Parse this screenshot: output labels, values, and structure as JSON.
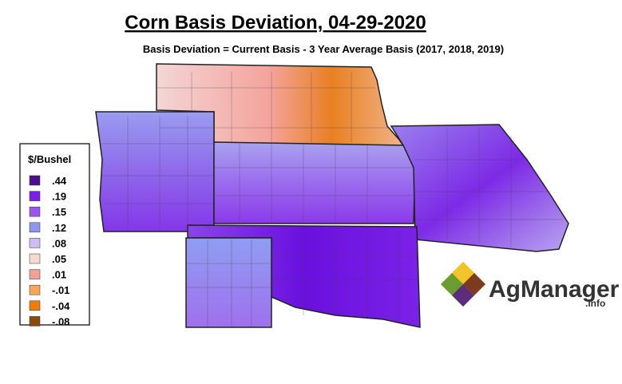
{
  "header": {
    "title": "Corn Basis Deviation, 04-29-2020",
    "subtitle": "Basis Deviation = Current Basis - 3 Year Average Basis (2017, 2018, 2019)"
  },
  "legend": {
    "title": "$/Bushel",
    "items": [
      {
        "label": ".44",
        "color": "#4b0f8c"
      },
      {
        "label": ".19",
        "color": "#7b1fe8"
      },
      {
        "label": ".15",
        "color": "#9a55ee"
      },
      {
        "label": ".12",
        "color": "#8e97f0"
      },
      {
        "label": ".08",
        "color": "#cdbdf2"
      },
      {
        "label": ".05",
        "color": "#f5d9cf"
      },
      {
        "label": ".01",
        "color": "#f3a09a"
      },
      {
        "label": "-.01",
        "color": "#f5a55c"
      },
      {
        "label": "-.04",
        "color": "#ee7d0d"
      },
      {
        "label": "-.08",
        "color": "#8a4a10"
      }
    ]
  },
  "logo": {
    "name": "AgManager",
    "suffix": ".info"
  }
}
